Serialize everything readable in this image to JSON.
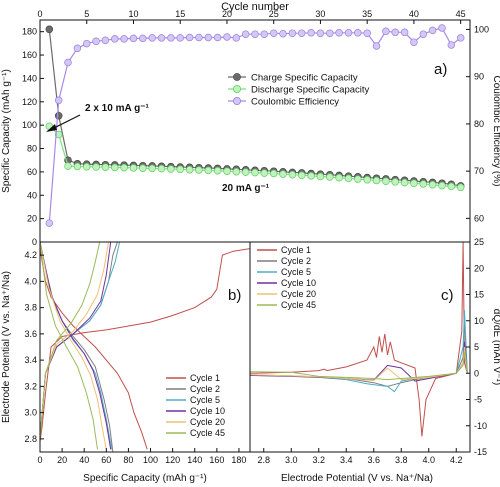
{
  "chart_data": [
    {
      "panel_label": "a)",
      "type": "scatter-line",
      "xlabel": "Cycle number",
      "ylabel_left": "Specific Capacity (mAh g⁻¹)",
      "ylabel_right": "Coulombic Efficiency (%)",
      "xlim": [
        0,
        46
      ],
      "ylim_left": [
        0,
        190
      ],
      "ylim_right": [
        55,
        102
      ],
      "xticks": [
        0,
        5,
        10,
        15,
        20,
        25,
        30,
        35,
        40,
        45
      ],
      "yticks_left": [
        0,
        20,
        40,
        60,
        80,
        100,
        120,
        140,
        160,
        180
      ],
      "yticks_right": [
        60,
        70,
        80,
        90,
        100
      ],
      "legend_position": "right-middle",
      "annotations": [
        {
          "text": "2 x 10 mA g⁻¹",
          "arrow_to_cycle": 2,
          "arrow_to_capacity": 100
        },
        {
          "text": "20 mA g⁻¹"
        }
      ],
      "series": [
        {
          "name": "Charge Specific Capacity",
          "axis": "left",
          "color": "#6b6b6b",
          "x": [
            1,
            2,
            3,
            4,
            5,
            6,
            7,
            8,
            9,
            10,
            11,
            12,
            13,
            14,
            15,
            16,
            17,
            18,
            19,
            20,
            21,
            22,
            23,
            24,
            25,
            26,
            27,
            28,
            29,
            30,
            31,
            32,
            33,
            34,
            35,
            36,
            37,
            38,
            39,
            40,
            41,
            42,
            43,
            44,
            45
          ],
          "values": [
            182,
            108,
            70,
            67,
            66.7,
            66.4,
            66.2,
            66,
            65.8,
            65.6,
            65.3,
            65.1,
            64.8,
            64.5,
            64.2,
            63.9,
            63.6,
            63.3,
            63,
            62.6,
            62.2,
            61.8,
            61.4,
            61,
            60.6,
            60.1,
            59.6,
            59.1,
            58.6,
            58.1,
            57.6,
            57,
            56.4,
            55.8,
            55.2,
            54.6,
            54,
            53.4,
            52.8,
            52.2,
            51.6,
            51,
            50.3,
            49.4,
            48
          ]
        },
        {
          "name": "Discharge Specific Capacity",
          "axis": "left",
          "color": "#7ee07e",
          "x": [
            1,
            2,
            3,
            4,
            5,
            6,
            7,
            8,
            9,
            10,
            11,
            12,
            13,
            14,
            15,
            16,
            17,
            18,
            19,
            20,
            21,
            22,
            23,
            24,
            25,
            26,
            27,
            28,
            29,
            30,
            31,
            32,
            33,
            34,
            35,
            36,
            37,
            38,
            39,
            40,
            41,
            42,
            43,
            44,
            45
          ],
          "values": [
            99,
            92,
            65,
            64.6,
            64.4,
            64.2,
            64,
            63.8,
            63.6,
            63.4,
            63.2,
            63,
            62.8,
            62.5,
            62.2,
            61.9,
            61.6,
            61.3,
            61,
            60.6,
            60.2,
            59.8,
            59.4,
            59,
            58.6,
            58.1,
            57.6,
            57.1,
            56.6,
            56.1,
            55.6,
            55,
            54.4,
            53.8,
            53.2,
            52.6,
            52,
            51.4,
            50.8,
            50.2,
            49.6,
            49,
            48.3,
            47.6,
            46.8
          ]
        },
        {
          "name": "Coulombic Efficiency",
          "axis": "right",
          "color": "#a78ae8",
          "x": [
            1,
            2,
            3,
            4,
            5,
            6,
            7,
            8,
            9,
            10,
            11,
            12,
            13,
            14,
            15,
            16,
            17,
            18,
            19,
            20,
            21,
            22,
            23,
            24,
            25,
            26,
            27,
            28,
            29,
            30,
            31,
            32,
            33,
            34,
            35,
            36,
            37,
            38,
            39,
            40,
            41,
            42,
            43,
            44,
            45
          ],
          "values": [
            59,
            85,
            93,
            96,
            97,
            97.5,
            97.7,
            98,
            98,
            98.1,
            98.1,
            98.2,
            98.2,
            98.2,
            98.2,
            98.3,
            98.3,
            98.3,
            98.3,
            98.4,
            98.2,
            99,
            99,
            99,
            99.2,
            99.1,
            99.2,
            99.2,
            99.3,
            99.2,
            99.2,
            99.3,
            99.3,
            99.3,
            99.2,
            96.5,
            99.6,
            99.4,
            99.4,
            97.3,
            99,
            99.8,
            100.3,
            96.7,
            98.2
          ]
        }
      ]
    },
    {
      "panel_label": "b)",
      "type": "line",
      "xlabel": "Specific Capacity (mAh g⁻¹)",
      "ylabel": "Electrode Potential (V vs. Na⁺/Na)",
      "xlim": [
        0,
        190
      ],
      "ylim": [
        2.7,
        4.3
      ],
      "xticks": [
        0,
        20,
        40,
        60,
        80,
        100,
        120,
        140,
        160,
        180
      ],
      "yticks": [
        2.8,
        3.0,
        3.2,
        3.4,
        3.6,
        3.8,
        4.0,
        4.2
      ],
      "legend_position": "lower-right",
      "series": [
        {
          "name": "Cycle 1",
          "color": "#c0504d",
          "charge": {
            "x": [
              0,
              2,
              5,
              10,
              20,
              40,
              60,
              80,
              100,
              120,
              140,
              155,
              160,
              165,
              175,
              190
            ],
            "y": [
              2.78,
              2.9,
              3.15,
              3.5,
              3.58,
              3.61,
              3.63,
              3.66,
              3.69,
              3.74,
              3.8,
              3.88,
              3.94,
              4.2,
              4.23,
              4.25
            ]
          },
          "discharge": {
            "x": [
              0,
              5,
              10,
              20,
              30,
              40,
              50,
              60,
              70,
              80,
              85,
              92,
              97
            ],
            "y": [
              4.25,
              4.0,
              3.88,
              3.76,
              3.66,
              3.58,
              3.5,
              3.4,
              3.3,
              3.15,
              3.0,
              2.85,
              2.72
            ]
          }
        },
        {
          "name": "Cycle 2",
          "color": "#7f7f7f",
          "charge": {
            "x": [
              0,
              5,
              15,
              30,
              45,
              55,
              62,
              66,
              70
            ],
            "y": [
              2.8,
              3.3,
              3.5,
              3.6,
              3.7,
              3.82,
              4.0,
              4.2,
              4.3
            ]
          },
          "discharge": {
            "x": [
              0,
              5,
              12,
              20,
              30,
              40,
              50,
              58,
              63,
              66
            ],
            "y": [
              4.3,
              4.1,
              3.85,
              3.7,
              3.58,
              3.48,
              3.35,
              3.1,
              2.9,
              2.7
            ]
          }
        },
        {
          "name": "Cycle 5",
          "color": "#4bacc6",
          "charge": {
            "x": [
              0,
              5,
              15,
              30,
              45,
              55,
              62,
              68,
              72
            ],
            "y": [
              2.8,
              3.3,
              3.5,
              3.6,
              3.7,
              3.82,
              4.0,
              4.15,
              4.3
            ]
          },
          "discharge": {
            "x": [
              0,
              10,
              20,
              30,
              40,
              50,
              55,
              60,
              65
            ],
            "y": [
              4.3,
              3.9,
              3.7,
              3.55,
              3.45,
              3.3,
              3.15,
              2.95,
              2.72
            ]
          }
        },
        {
          "name": "Cycle 10",
          "color": "#7030a0",
          "charge": {
            "x": [
              0,
              5,
              15,
              30,
              45,
              55,
              60,
              64
            ],
            "y": [
              2.8,
              3.3,
              3.5,
              3.6,
              3.72,
              3.85,
              4.05,
              4.3
            ]
          },
          "discharge": {
            "x": [
              0,
              10,
              20,
              30,
              40,
              48,
              54,
              60,
              64
            ],
            "y": [
              4.3,
              3.9,
              3.7,
              3.56,
              3.45,
              3.32,
              3.15,
              2.92,
              2.72
            ]
          }
        },
        {
          "name": "Cycle 20",
          "color": "#f0c070",
          "charge": {
            "x": [
              0,
              5,
              15,
              30,
              42,
              52,
              58,
              62
            ],
            "y": [
              2.8,
              3.3,
              3.52,
              3.62,
              3.75,
              3.9,
              4.1,
              4.3
            ]
          },
          "discharge": {
            "x": [
              0,
              8,
              18,
              28,
              38,
              46,
              52,
              56,
              60
            ],
            "y": [
              4.3,
              3.95,
              3.7,
              3.55,
              3.42,
              3.28,
              3.1,
              2.9,
              2.72
            ]
          }
        },
        {
          "name": "Cycle 45",
          "color": "#9bbb59",
          "charge": {
            "x": [
              0,
              5,
              15,
              28,
              38,
              45,
              50,
              54
            ],
            "y": [
              2.8,
              3.3,
              3.55,
              3.68,
              3.82,
              3.98,
              4.15,
              4.3
            ]
          },
          "discharge": {
            "x": [
              0,
              6,
              14,
              24,
              34,
              42,
              48,
              52
            ],
            "y": [
              4.3,
              3.9,
              3.66,
              3.5,
              3.35,
              3.15,
              2.95,
              2.72
            ]
          }
        }
      ]
    },
    {
      "panel_label": "c)",
      "type": "line",
      "xlabel": "Electrode Potential (V vs. Na⁺/Na)",
      "ylabel": "dQ/dE (mAh V⁻¹)",
      "xlim": [
        2.7,
        4.3
      ],
      "ylim": [
        -15,
        25
      ],
      "xticks": [
        2.8,
        3.0,
        3.2,
        3.4,
        3.6,
        3.8,
        4.0,
        4.2
      ],
      "yticks": [
        -15,
        -10,
        -5,
        0,
        5,
        10,
        15,
        20,
        25
      ],
      "legend_position": "upper-left",
      "series": [
        {
          "name": "Cycle 1",
          "color": "#c0504d",
          "x": [
            2.7,
            3.0,
            3.2,
            3.24,
            3.26,
            3.4,
            3.55,
            3.6,
            3.62,
            3.64,
            3.66,
            3.68,
            3.7,
            3.72,
            3.75,
            3.8,
            3.9,
            3.93,
            3.95,
            3.98,
            4.05,
            4.2,
            4.24,
            4.25,
            4.26,
            4.28
          ],
          "y": [
            0,
            0.2,
            0.5,
            0.8,
            0.5,
            1.2,
            2.5,
            5,
            3,
            7,
            4,
            7.5,
            3.5,
            6,
            2.5,
            2,
            1,
            -5,
            -12,
            -5,
            -1,
            0,
            8,
            25,
            2,
            0
          ]
        },
        {
          "name": "Cycle 2",
          "color": "#7f7f7f",
          "x": [
            2.7,
            3.0,
            3.2,
            3.4,
            3.6,
            3.7,
            3.8,
            3.9,
            4.0,
            4.2,
            4.25,
            4.26,
            4.28
          ],
          "y": [
            -0.4,
            -0.5,
            -0.7,
            -1.0,
            -1.8,
            -2.5,
            -1.8,
            -1.2,
            -0.8,
            0,
            3,
            10,
            0
          ]
        },
        {
          "name": "Cycle 5",
          "color": "#4bacc6",
          "x": [
            2.7,
            3.0,
            3.2,
            3.4,
            3.55,
            3.7,
            3.75,
            3.8,
            3.9,
            4.0,
            4.2,
            4.25,
            4.26,
            4.28
          ],
          "y": [
            -0.3,
            -0.5,
            -0.8,
            -1.2,
            -2,
            -2.5,
            -3.5,
            -1.5,
            -1,
            -0.8,
            0,
            5,
            12,
            0
          ]
        },
        {
          "name": "Cycle 10",
          "color": "#7030a0",
          "x": [
            2.7,
            3.0,
            3.2,
            3.4,
            3.6,
            3.7,
            3.8,
            3.9,
            4.0,
            4.2,
            4.25,
            4.26,
            4.28
          ],
          "y": [
            -0.4,
            -0.6,
            -0.8,
            -1.0,
            -1.3,
            1.5,
            1,
            -1.5,
            -1,
            0,
            2,
            6,
            0
          ]
        },
        {
          "name": "Cycle 20",
          "color": "#f0c070",
          "x": [
            2.7,
            3.0,
            3.2,
            3.4,
            3.6,
            3.7,
            3.8,
            3.9,
            4.0,
            4.2,
            4.25,
            4.26,
            4.28
          ],
          "y": [
            -0.3,
            -0.5,
            -0.7,
            -1.0,
            -1.4,
            1,
            -1.2,
            -1.0,
            -0.8,
            0,
            2,
            5,
            0
          ]
        },
        {
          "name": "Cycle 45",
          "color": "#9bbb59",
          "x": [
            2.7,
            3.0,
            3.2,
            3.4,
            3.6,
            3.7,
            3.8,
            3.9,
            4.0,
            4.2,
            4.25,
            4.26,
            4.28
          ],
          "y": [
            0.3,
            0.2,
            -0.6,
            -0.8,
            -1.0,
            -1.2,
            -1.0,
            -0.8,
            -0.6,
            0,
            1.5,
            4,
            0
          ]
        }
      ]
    }
  ]
}
